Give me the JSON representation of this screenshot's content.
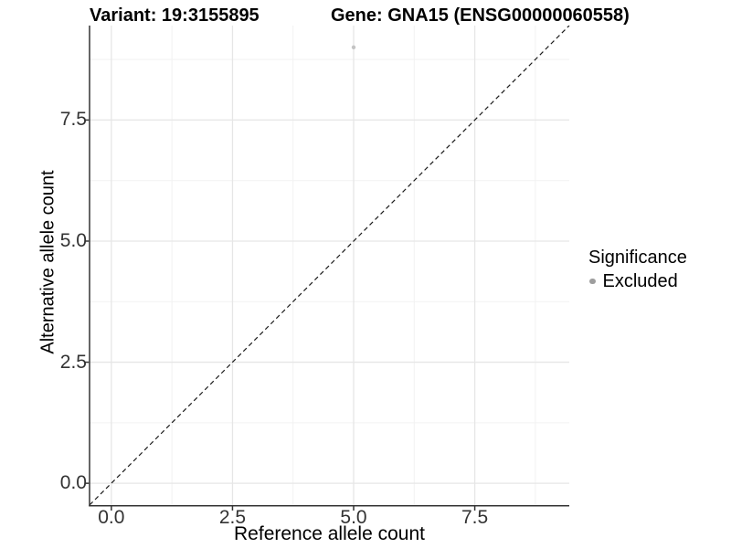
{
  "titles": {
    "variant": "Variant: 19:3155895",
    "gene": "Gene: GNA15 (ENSG00000060558)"
  },
  "chart_data": {
    "type": "scatter",
    "title": "Variant: 19:3155895  Gene: GNA15 (ENSG00000060558)",
    "x": {
      "label": "Reference allele count",
      "range": [
        -0.45,
        9.45
      ],
      "ticks": [
        0,
        2.5,
        5,
        7.5
      ],
      "tick_labels": [
        "0.0",
        "2.5",
        "5.0",
        "7.5"
      ],
      "minor_ticks": [
        1.25,
        3.75,
        6.25,
        8.75
      ]
    },
    "y": {
      "label": "Alternative allele count",
      "range": [
        -0.45,
        9.45
      ],
      "ticks": [
        0,
        2.5,
        5,
        7.5
      ],
      "tick_labels": [
        "0.0",
        "2.5",
        "5.0",
        "7.5"
      ],
      "minor_ticks": [
        1.25,
        3.75,
        6.25,
        8.75
      ]
    },
    "points": [
      {
        "x": 5,
        "y": 9,
        "significance": "Excluded"
      }
    ],
    "reference_line": {
      "slope": 1,
      "intercept": 0,
      "style": "dashed"
    },
    "grid": true,
    "legend": {
      "title": "Significance",
      "position": "right",
      "items": [
        {
          "label": "Excluded"
        }
      ]
    }
  },
  "style": {
    "point_color": "#c4c4c4",
    "legend_dot_color": "#9e9e9e",
    "grid_major_color": "#e6e6e6",
    "grid_minor_color": "#f2f2f2",
    "axis_color": "#333333",
    "ref_line_color": "#1a1a1a",
    "tick_text_color": "#333333"
  }
}
